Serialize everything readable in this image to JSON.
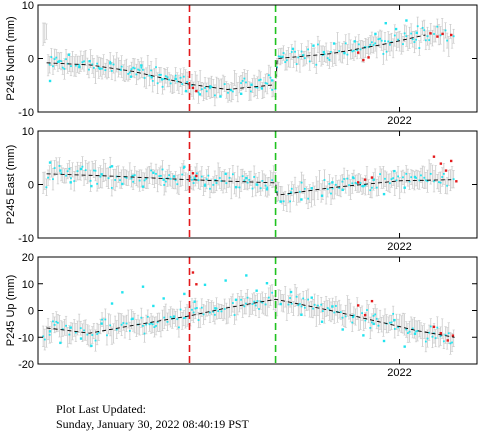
{
  "footer": {
    "label": "Plot Last Updated:",
    "datetime": "Sunday, January 30, 2022 08:40:19 PST"
  },
  "chart_data": [
    {
      "type": "scatter",
      "title": "",
      "xlabel": "",
      "ylabel": "P245 North (mm)",
      "ylim": [
        -10,
        10
      ],
      "yticks": [
        -10,
        0,
        10
      ],
      "xtick_labels": [
        "2022"
      ],
      "xlim": [
        2019.9,
        2022.45
      ],
      "x_tick_values": [
        2022.0
      ],
      "event_lines": [
        {
          "x": 2020.78,
          "color": "#e31a1c"
        },
        {
          "x": 2021.28,
          "color": "#1fc21f"
        }
      ],
      "trend": [
        [
          2019.95,
          -0.8
        ],
        [
          2020.2,
          -1.2
        ],
        [
          2020.45,
          -2.4
        ],
        [
          2020.78,
          -4.8
        ],
        [
          2021.0,
          -5.8
        ],
        [
          2021.28,
          -4.9
        ],
        [
          2021.29,
          0.0
        ],
        [
          2021.6,
          0.9
        ],
        [
          2021.9,
          2.6
        ],
        [
          2022.15,
          4.4
        ]
      ],
      "series": [
        {
          "color": "#22e3ee",
          "points": [
            [
              2019.97,
              -4.2
            ],
            [
              2020.02,
              -0.6
            ],
            [
              2020.08,
              0.7
            ],
            [
              2020.14,
              -1.6
            ],
            [
              2020.2,
              -0.5
            ],
            [
              2020.26,
              -1.9
            ],
            [
              2020.32,
              -0.9
            ],
            [
              2020.38,
              -2.1
            ],
            [
              2020.44,
              -3.4
            ],
            [
              2020.5,
              -1.3
            ],
            [
              2020.56,
              -3.5
            ],
            [
              2020.62,
              -3.9
            ],
            [
              2020.7,
              -3.8
            ],
            [
              2020.76,
              -6.1
            ],
            [
              2020.84,
              -6.7
            ],
            [
              2020.9,
              -5.2
            ],
            [
              2020.96,
              -7.1
            ],
            [
              2021.02,
              -5.9
            ],
            [
              2021.08,
              -6.6
            ],
            [
              2021.14,
              -4.9
            ],
            [
              2021.2,
              -5.6
            ],
            [
              2021.26,
              -4.1
            ],
            [
              2021.32,
              0.3
            ],
            [
              2021.38,
              1.8
            ],
            [
              2021.44,
              0.6
            ],
            [
              2021.5,
              2.4
            ],
            [
              2021.56,
              1.2
            ],
            [
              2021.62,
              2.8
            ],
            [
              2021.68,
              1.0
            ],
            [
              2021.74,
              3.2
            ],
            [
              2021.8,
              2.1
            ],
            [
              2021.86,
              4.6
            ],
            [
              2021.92,
              6.6
            ],
            [
              2021.98,
              5.5
            ],
            [
              2022.04,
              7.1
            ],
            [
              2022.1,
              4.8
            ]
          ]
        },
        {
          "color": "#e31a1c",
          "points": [
            [
              2020.8,
              -5.5
            ],
            [
              2020.82,
              -6.1
            ],
            [
              2021.76,
              1.1
            ],
            [
              2021.79,
              -0.3
            ],
            [
              2021.82,
              0.2
            ],
            [
              2022.18,
              4.7
            ],
            [
              2022.22,
              4.1
            ],
            [
              2022.25,
              4.6
            ],
            [
              2022.3,
              4.4
            ]
          ]
        }
      ]
    },
    {
      "type": "scatter",
      "title": "",
      "xlabel": "",
      "ylabel": "P245 East (mm)",
      "ylim": [
        -10,
        10
      ],
      "yticks": [
        -10,
        0,
        10
      ],
      "xtick_labels": [
        "2022"
      ],
      "xlim": [
        2019.9,
        2022.45
      ],
      "x_tick_values": [
        2022.0
      ],
      "event_lines": [
        {
          "x": 2020.78,
          "color": "#e31a1c"
        },
        {
          "x": 2021.28,
          "color": "#1fc21f"
        }
      ],
      "trend": [
        [
          2019.95,
          2.0
        ],
        [
          2020.3,
          1.6
        ],
        [
          2020.78,
          0.9
        ],
        [
          2021.28,
          0.3
        ],
        [
          2021.29,
          -2.0
        ],
        [
          2021.6,
          -0.6
        ],
        [
          2022.0,
          0.7
        ],
        [
          2022.3,
          0.9
        ]
      ],
      "series": [
        {
          "color": "#22e3ee",
          "points": [
            [
              2019.97,
              4.1
            ],
            [
              2020.03,
              2.6
            ],
            [
              2020.09,
              0.4
            ],
            [
              2020.15,
              2.9
            ],
            [
              2020.21,
              -0.3
            ],
            [
              2020.27,
              1.9
            ],
            [
              2020.33,
              3.4
            ],
            [
              2020.39,
              0.1
            ],
            [
              2020.45,
              1.6
            ],
            [
              2020.51,
              -0.4
            ],
            [
              2020.57,
              2.2
            ],
            [
              2020.63,
              0.9
            ],
            [
              2020.69,
              1.5
            ],
            [
              2020.75,
              3.3
            ],
            [
              2020.81,
              1.1
            ],
            [
              2020.87,
              -0.2
            ],
            [
              2020.93,
              0.8
            ],
            [
              2020.99,
              2.0
            ],
            [
              2021.05,
              -0.5
            ],
            [
              2021.11,
              1.2
            ],
            [
              2021.17,
              0.0
            ],
            [
              2021.23,
              -0.9
            ],
            [
              2021.31,
              -3.2
            ],
            [
              2021.37,
              -1.5
            ],
            [
              2021.43,
              -2.8
            ],
            [
              2021.49,
              -0.7
            ],
            [
              2021.55,
              -2.1
            ],
            [
              2021.61,
              0.4
            ],
            [
              2021.67,
              -1.0
            ],
            [
              2021.73,
              1.3
            ],
            [
              2021.79,
              -0.3
            ],
            [
              2021.85,
              0.9
            ],
            [
              2021.91,
              -1.8
            ],
            [
              2021.97,
              2.5
            ],
            [
              2022.03,
              -0.6
            ],
            [
              2022.09,
              1.4
            ]
          ]
        },
        {
          "color": "#e31a1c",
          "points": [
            [
              2020.8,
              2.1
            ],
            [
              2020.82,
              1.6
            ],
            [
              2021.76,
              0.4
            ],
            [
              2021.8,
              0.9
            ],
            [
              2021.84,
              1.3
            ],
            [
              2022.2,
              5.2
            ],
            [
              2022.24,
              3.9
            ],
            [
              2022.27,
              2.6
            ],
            [
              2022.3,
              4.4
            ],
            [
              2022.33,
              0.6
            ]
          ]
        }
      ]
    },
    {
      "type": "scatter",
      "title": "",
      "xlabel": "",
      "ylabel": "P245 Up (mm)",
      "ylim": [
        -20,
        20
      ],
      "yticks": [
        -20,
        -10,
        0,
        10,
        20
      ],
      "xtick_labels": [
        "2022"
      ],
      "xlim": [
        2019.9,
        2022.45
      ],
      "x_tick_values": [
        2022.0
      ],
      "event_lines": [
        {
          "x": 2020.78,
          "color": "#e31a1c"
        },
        {
          "x": 2021.28,
          "color": "#1fc21f"
        }
      ],
      "trend": [
        [
          2019.95,
          -6.5
        ],
        [
          2020.2,
          -8.5
        ],
        [
          2020.5,
          -5.0
        ],
        [
          2020.78,
          -2.0
        ],
        [
          2021.0,
          1.0
        ],
        [
          2021.28,
          4.2
        ],
        [
          2021.6,
          0.0
        ],
        [
          2021.9,
          -4.5
        ],
        [
          2022.1,
          -7.5
        ],
        [
          2022.32,
          -10.0
        ]
      ],
      "series": [
        {
          "color": "#22e3ee",
          "points": [
            [
              2019.97,
              -7.8
            ],
            [
              2020.03,
              -12.1
            ],
            [
              2020.09,
              -6.4
            ],
            [
              2020.15,
              -10.5
            ],
            [
              2020.21,
              -13.2
            ],
            [
              2020.27,
              -4.9
            ],
            [
              2020.33,
              2.6
            ],
            [
              2020.39,
              6.8
            ],
            [
              2020.45,
              -3.1
            ],
            [
              2020.51,
              8.9
            ],
            [
              2020.57,
              1.7
            ],
            [
              2020.63,
              4.5
            ],
            [
              2020.69,
              -2.3
            ],
            [
              2020.75,
              6.2
            ],
            [
              2020.81,
              3.3
            ],
            [
              2020.87,
              9.6
            ],
            [
              2020.93,
              0.8
            ],
            [
              2020.99,
              11.2
            ],
            [
              2021.05,
              4.0
            ],
            [
              2021.11,
              13.1
            ],
            [
              2021.17,
              7.4
            ],
            [
              2021.23,
              10.2
            ],
            [
              2021.31,
              2.4
            ],
            [
              2021.37,
              6.9
            ],
            [
              2021.43,
              -1.6
            ],
            [
              2021.49,
              4.8
            ],
            [
              2021.55,
              -4.2
            ],
            [
              2021.61,
              1.5
            ],
            [
              2021.67,
              -7.1
            ],
            [
              2021.73,
              -2.4
            ],
            [
              2021.79,
              -9.3
            ],
            [
              2021.85,
              -5.0
            ],
            [
              2021.91,
              -11.4
            ],
            [
              2021.97,
              -3.6
            ],
            [
              2022.03,
              -13.5
            ],
            [
              2022.09,
              -8.7
            ]
          ]
        },
        {
          "color": "#e31a1c",
          "points": [
            [
              2020.8,
              14.2
            ],
            [
              2020.82,
              9.8
            ],
            [
              2021.76,
              1.9
            ],
            [
              2021.8,
              -1.7
            ],
            [
              2021.84,
              3.5
            ],
            [
              2022.2,
              -6.1
            ],
            [
              2022.24,
              -8.5
            ],
            [
              2022.28,
              -11.2
            ],
            [
              2022.31,
              -9.4
            ]
          ]
        }
      ]
    }
  ]
}
